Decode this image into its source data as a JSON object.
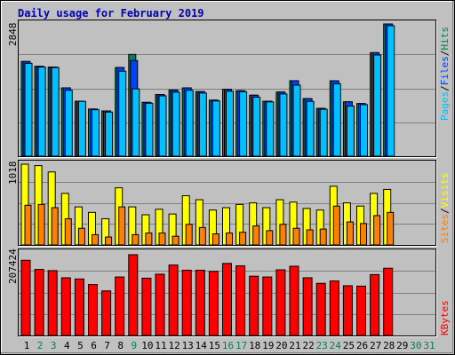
{
  "title": "Daily usage for February 2019",
  "colors": {
    "background": "#c0c0c0",
    "hits": "#00805c",
    "files": "#0040ff",
    "pages": "#00c0ff",
    "visits": "#ffff00",
    "sites": "#ff8000",
    "kbytes": "#ff0000",
    "title": "#0000b4",
    "weekday_label": "#000000",
    "weekend_label": "#00805c"
  },
  "legend": {
    "hits": "Hits",
    "files": "Files",
    "pages": "Pages",
    "slash": "/",
    "visits": "Visits",
    "sites": "Sites",
    "kbytes": "KBytes"
  },
  "chart_data": {
    "type": "bar",
    "categories": [
      "1",
      "2",
      "3",
      "4",
      "5",
      "6",
      "7",
      "8",
      "9",
      "10",
      "11",
      "12",
      "13",
      "14",
      "15",
      "16",
      "17",
      "18",
      "19",
      "20",
      "21",
      "22",
      "23",
      "24",
      "25",
      "26",
      "27",
      "28",
      "29",
      "30",
      "31"
    ],
    "weekend_days": [
      2,
      3,
      9,
      16,
      17,
      23,
      24,
      30,
      31
    ],
    "panels": [
      {
        "id": "hits-files-pages",
        "max_label": "2848",
        "ylim": [
          0,
          2848
        ],
        "series": [
          {
            "name": "Hits",
            "values": [
              2040,
              1936,
              1920,
              1472,
              1184,
              1016,
              975,
              1910,
              2192,
              1160,
              1328,
              1426,
              1472,
              1392,
              1207,
              1440,
              1410,
              1314,
              1184,
              1383,
              1625,
              1240,
              1030,
              1624,
              1172,
              1133,
              2230,
              2848,
              0,
              0,
              0
            ]
          },
          {
            "name": "Files",
            "values": [
              2040,
              1936,
              1920,
              1472,
              1184,
              1016,
              975,
              1910,
              2060,
              1160,
              1328,
              1426,
              1472,
              1392,
              1207,
              1440,
              1410,
              1314,
              1184,
              1383,
              1625,
              1240,
              1030,
              1624,
              1172,
              1133,
              2230,
              2848,
              0,
              0,
              0
            ]
          },
          {
            "name": "Pages",
            "values": [
              2000,
              1920,
              1910,
              1420,
              1180,
              1000,
              950,
              1830,
              1450,
              1140,
              1300,
              1380,
              1420,
              1360,
              1190,
              1400,
              1390,
              1270,
              1170,
              1340,
              1530,
              1180,
              1010,
              1560,
              1080,
              1110,
              2180,
              2810,
              0,
              0,
              0
            ]
          }
        ]
      },
      {
        "id": "visits-sites",
        "max_label": "1018",
        "ylim": [
          0,
          1018
        ],
        "series": [
          {
            "name": "Visits",
            "values": [
              1018,
              1000,
              920,
              650,
              480,
              410,
              330,
              720,
              480,
              380,
              450,
              390,
              620,
              570,
              440,
              470,
              510,
              530,
              470,
              570,
              540,
              460,
              440,
              740,
              530,
              490,
              650,
              700,
              0,
              0,
              0
            ]
          },
          {
            "name": "Sites",
            "values": [
              500,
              510,
              470,
              330,
              210,
              130,
              100,
              480,
              130,
              150,
              150,
              110,
              260,
              220,
              140,
              150,
              160,
              240,
              180,
              260,
              210,
              190,
              200,
              490,
              290,
              270,
              370,
              410,
              0,
              0,
              0
            ]
          }
        ]
      },
      {
        "id": "kbytes",
        "max_label": "207424",
        "ylim": [
          0,
          207424
        ],
        "series": [
          {
            "name": "KBytes",
            "values": [
              189000,
              166000,
              163000,
              145000,
              142000,
              128000,
              112000,
              147000,
              203000,
              144000,
              154000,
              177000,
              164000,
              164000,
              161000,
              181000,
              175000,
              149000,
              147000,
              165000,
              174000,
              145000,
              131000,
              137000,
              125000,
              124000,
              153000,
              169000,
              0,
              0,
              0
            ]
          }
        ]
      }
    ]
  }
}
